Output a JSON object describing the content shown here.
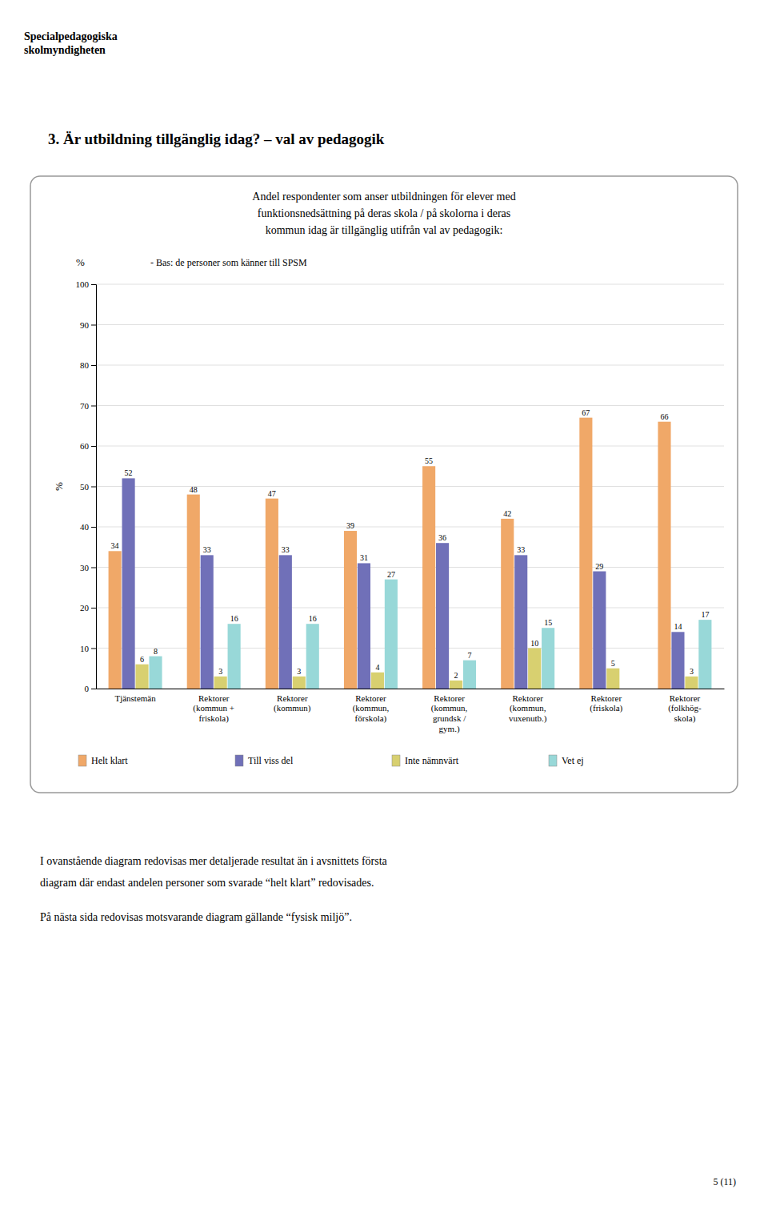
{
  "logo": "Specialpedagogiska\nskolmyndigheten",
  "page_title": "3.  Är utbildning tillgänglig idag? – val av pedagogik",
  "body_text": [
    "I ovanstående diagram redovisas mer detaljerade resultat än i avsnittets första",
    "diagram där endast andelen personer som svarade “helt klart” redovisades.",
    "På nästa sida redovisas motsvarande diagram gällande “fysisk miljö”."
  ],
  "page_number": "5 (11)",
  "chart_data": {
    "type": "bar",
    "title": [
      "Andel respondenter som anser utbildningen för elever med",
      "funktionsnedsättning på deras skola / på skolorna i deras",
      "kommun idag är tillgänglig utifrån val av pedagogik:"
    ],
    "subtitle": "- Bas: de personer som känner till SPSM",
    "ylabel": "%",
    "categories": [
      "Tjänstemän",
      "Rektorer\n(kommun +\nfriskola)",
      "Rektorer\n(kommun)",
      "Rektorer\n(kommun,\nförskola)",
      "Rektorer\n(kommun,\ngrundsk /\ngym.)",
      "Rektorer\n(kommun,\nvuxenutb.)",
      "Rektorer\n(friskola)",
      "Rektorer\n(folkhög-\nskola)"
    ],
    "series": [
      {
        "name": "Helt klart",
        "color": "#F0A868",
        "values": [
          34,
          48,
          47,
          39,
          55,
          42,
          67,
          66
        ]
      },
      {
        "name": "Till viss del",
        "color": "#7070B8",
        "values": [
          52,
          33,
          33,
          31,
          36,
          33,
          29,
          14
        ]
      },
      {
        "name": "Inte nämnvärt",
        "color": "#D8D070",
        "values": [
          6,
          3,
          3,
          4,
          2,
          10,
          5,
          3
        ]
      },
      {
        "name": "Vet ej",
        "color": "#98D8D8",
        "values": [
          8,
          16,
          16,
          27,
          7,
          15,
          0,
          17
        ],
        "value_labels": [
          "8",
          "16",
          "16",
          "27",
          "7",
          "15",
          null,
          "17"
        ]
      }
    ],
    "ylim": [
      0,
      100
    ],
    "yticks": [
      0,
      10,
      20,
      30,
      40,
      50,
      60,
      70,
      80,
      90,
      100
    ],
    "grid": true,
    "data_labels": true
  }
}
